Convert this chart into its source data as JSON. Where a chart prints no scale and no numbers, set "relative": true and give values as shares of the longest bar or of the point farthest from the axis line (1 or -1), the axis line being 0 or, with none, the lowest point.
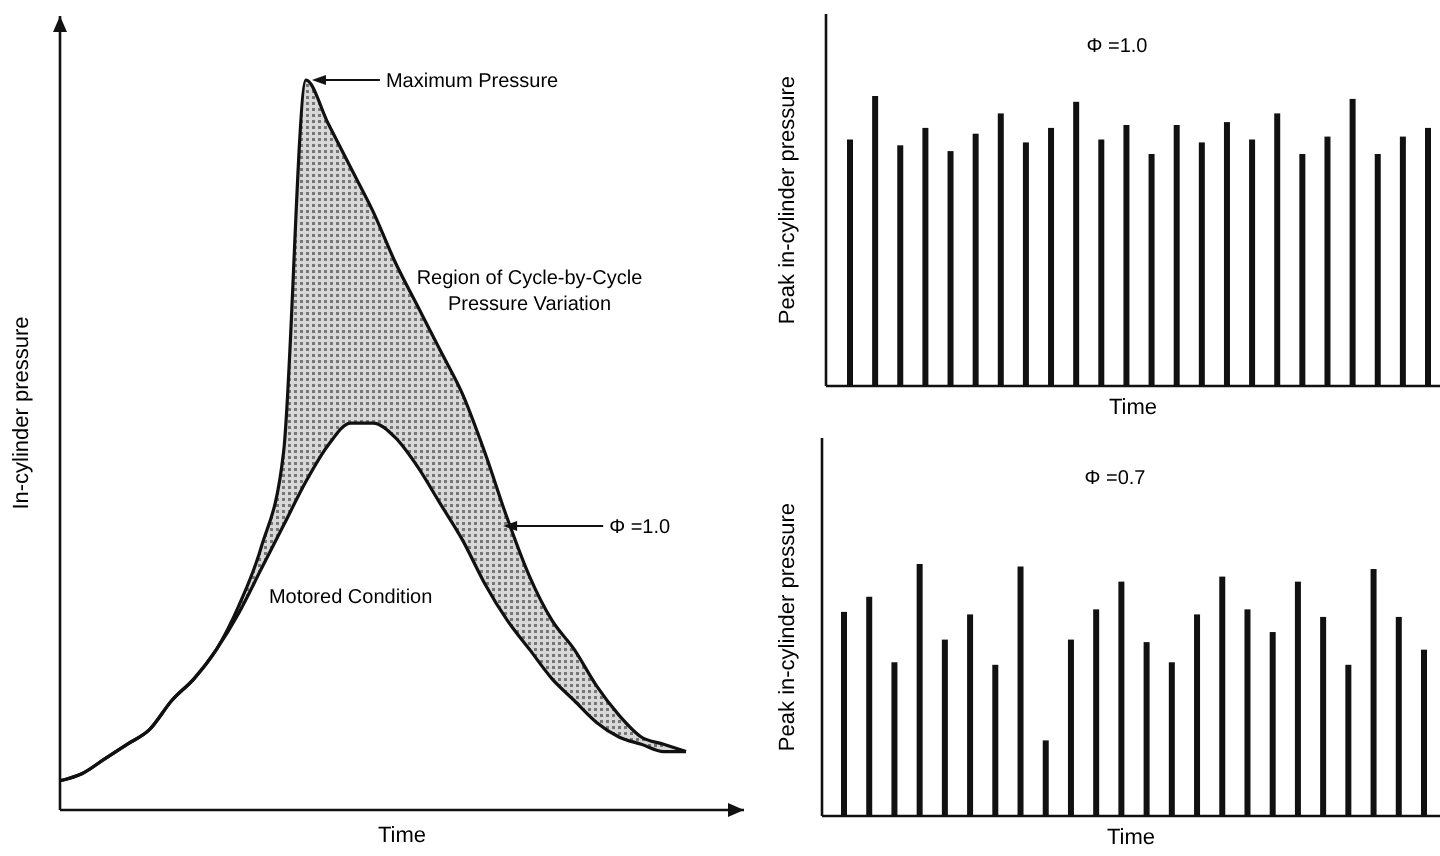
{
  "chart_data": [
    {
      "type": "line",
      "relative": true,
      "xlabel": "Time",
      "ylabel": "In-cylinder pressure",
      "categories": [
        null,
        null,
        null,
        null,
        null,
        null,
        null,
        null,
        null,
        null,
        null,
        null,
        null,
        null,
        null,
        null,
        null,
        null,
        null,
        null,
        null,
        null,
        null,
        null,
        null,
        null,
        null,
        null,
        null
      ],
      "series": [
        {
          "name": "Motored Condition",
          "color": "#111111",
          "values": [
            0.04,
            0.05,
            0.07,
            0.09,
            0.11,
            0.15,
            0.18,
            0.22,
            0.27,
            0.33,
            0.39,
            0.45,
            0.5,
            0.53,
            0.53,
            0.51,
            0.47,
            0.42,
            0.37,
            0.31,
            0.26,
            0.22,
            0.18,
            0.15,
            0.12,
            0.1,
            0.09,
            0.08,
            0.08
          ]
        },
        {
          "name": "Φ =1.0",
          "color": "#111111",
          "values": [
            0.04,
            0.05,
            0.07,
            0.09,
            0.11,
            0.15,
            0.18,
            0.22,
            0.28,
            0.36,
            0.49,
            1.0,
            0.94,
            0.88,
            0.82,
            0.75,
            0.69,
            0.63,
            0.57,
            0.49,
            0.4,
            0.32,
            0.26,
            0.22,
            0.17,
            0.13,
            0.1,
            0.09,
            0.08
          ],
          "lower": [
            0.04,
            0.05,
            0.07,
            0.09,
            0.11,
            0.15,
            0.18,
            0.22,
            0.27,
            0.33,
            0.39,
            0.45,
            0.5,
            0.53,
            0.53,
            0.51,
            0.47,
            0.42,
            0.37,
            0.31,
            0.26,
            0.22,
            0.18,
            0.15,
            0.12,
            0.1,
            0.09,
            0.08,
            0.08
          ],
          "upper": [
            0.04,
            0.05,
            0.07,
            0.09,
            0.11,
            0.15,
            0.18,
            0.22,
            0.28,
            0.36,
            0.49,
            1.0,
            0.94,
            0.88,
            0.82,
            0.75,
            0.69,
            0.63,
            0.57,
            0.49,
            0.4,
            0.32,
            0.26,
            0.22,
            0.17,
            0.13,
            0.1,
            0.09,
            0.08
          ]
        }
      ],
      "annotations": [
        "Maximum Pressure",
        "Region of Cycle-by-Cycle Pressure Variation"
      ]
    },
    {
      "type": "bar",
      "relative": true,
      "title": "Φ =1.0",
      "xlabel": "Time",
      "ylabel": "Peak in-cylinder pressure",
      "categories": [
        null,
        null,
        null,
        null,
        null,
        null,
        null,
        null,
        null,
        null,
        null,
        null,
        null,
        null,
        null,
        null,
        null,
        null,
        null,
        null,
        null,
        null,
        null,
        null
      ],
      "color": "#111111",
      "values": [
        0.85,
        1.0,
        0.83,
        0.89,
        0.81,
        0.87,
        0.94,
        0.84,
        0.89,
        0.98,
        0.85,
        0.9,
        0.8,
        0.9,
        0.84,
        0.91,
        0.85,
        0.94,
        0.8,
        0.86,
        0.99,
        0.8,
        0.86,
        0.89
      ]
    },
    {
      "type": "bar",
      "relative": true,
      "title": "Φ =0.7",
      "xlabel": "Time",
      "ylabel": "Peak in-cylinder pressure",
      "categories": [
        null,
        null,
        null,
        null,
        null,
        null,
        null,
        null,
        null,
        null,
        null,
        null,
        null,
        null,
        null,
        null,
        null,
        null,
        null,
        null,
        null,
        null,
        null,
        null
      ],
      "color": "#111111",
      "values": [
        0.81,
        0.87,
        0.61,
        1.0,
        0.7,
        0.8,
        0.6,
        0.99,
        0.3,
        0.7,
        0.82,
        0.93,
        0.69,
        0.61,
        0.8,
        0.95,
        0.82,
        0.73,
        0.93,
        0.79,
        0.6,
        0.98,
        0.79,
        0.66
      ]
    }
  ]
}
